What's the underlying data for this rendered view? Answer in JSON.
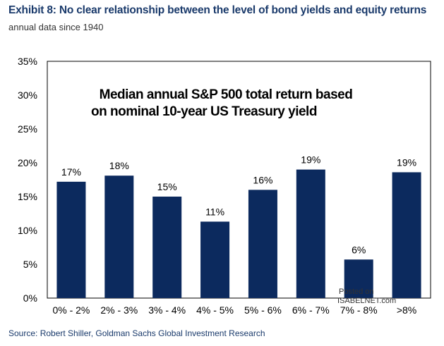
{
  "header": {
    "title": "Exhibit 8: No clear relationship between the level of bond yields and equity returns",
    "subtitle": "annual data since 1940"
  },
  "source": "Source: Robert Shiller, Goldman Sachs Global Investment Research",
  "watermark": {
    "line1": "Posted on",
    "line2": "ISABELNET.com"
  },
  "chart_data": {
    "type": "bar",
    "title": "Median annual S&P 500 total return based",
    "subtitle": "on nominal 10-year US Treasury yield",
    "categories": [
      "0% - 2%",
      "2% - 3%",
      "3% - 4%",
      "4% - 5%",
      "5% - 6%",
      "6% - 7%",
      "7% - 8%",
      ">8%"
    ],
    "values": [
      17.2,
      18.1,
      15.0,
      11.3,
      16.0,
      19.0,
      5.7,
      18.6
    ],
    "data_labels": [
      "17%",
      "18%",
      "15%",
      "11%",
      "16%",
      "19%",
      "6%",
      "19%"
    ],
    "yticks": [
      "0%",
      "5%",
      "10%",
      "15%",
      "20%",
      "25%",
      "30%",
      "35%"
    ],
    "ylim": [
      0,
      35
    ],
    "xlabel": "",
    "ylabel": "",
    "grid": false,
    "legend": "none",
    "bar_color": "#0c2a5e"
  }
}
